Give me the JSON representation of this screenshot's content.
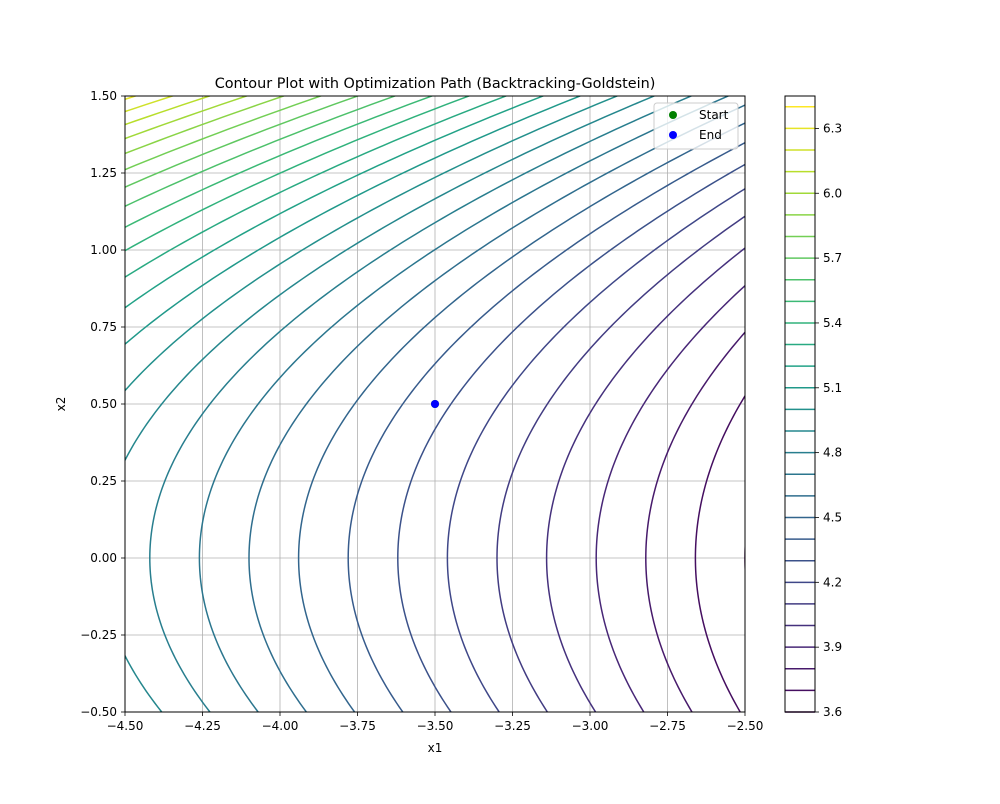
{
  "chart_data": {
    "type": "contour",
    "title": "Contour Plot with Optimization Path (Backtracking-Goldstein)",
    "xlabel": "x1",
    "ylabel": "x2",
    "xlim": [
      -4.5,
      -2.5
    ],
    "ylim": [
      -0.5,
      1.5
    ],
    "grid": true,
    "x_ticks": [
      -4.5,
      -4.25,
      -4.0,
      -3.75,
      -3.5,
      -3.25,
      -3.0,
      -2.75,
      -2.5
    ],
    "x_tick_labels": [
      "−4.50",
      "−4.25",
      "−4.00",
      "−3.75",
      "−3.50",
      "−3.25",
      "−3.00",
      "−2.75",
      "−2.50"
    ],
    "y_ticks": [
      -0.5,
      -0.25,
      0.0,
      0.25,
      0.5,
      0.75,
      1.0,
      1.25,
      1.5
    ],
    "y_tick_labels": [
      "−0.50",
      "−0.25",
      "0.00",
      "0.25",
      "0.50",
      "0.75",
      "1.00",
      "1.25",
      "1.50"
    ],
    "colormap": "viridis",
    "contour_levels": [
      3.6,
      3.7,
      3.8,
      3.9,
      4.0,
      4.1,
      4.2,
      4.3,
      4.4,
      4.5,
      4.6,
      4.7,
      4.8,
      4.9,
      5.0,
      5.1,
      5.2,
      5.3,
      5.4,
      5.5,
      5.6,
      5.7,
      5.8,
      5.9,
      6.0,
      6.1,
      6.2,
      6.3,
      6.4
    ],
    "colorbar": {
      "ticks": [
        3.6,
        3.9,
        4.2,
        4.5,
        4.8,
        5.1,
        5.4,
        5.7,
        6.0,
        6.3
      ],
      "tick_labels": [
        "3.6",
        "3.9",
        "4.2",
        "4.5",
        "4.8",
        "5.1",
        "5.4",
        "5.7",
        "6.0",
        "6.3"
      ],
      "range": [
        3.6,
        6.45
      ]
    },
    "points": [
      {
        "name": "Start",
        "x": -3.5,
        "y": 0.5,
        "color": "#008000"
      },
      {
        "name": "End",
        "x": -3.5,
        "y": 0.5,
        "color": "#0000ff"
      }
    ],
    "legend": {
      "placement": "top-right",
      "entries": [
        {
          "label": "Start",
          "color": "#008000"
        },
        {
          "label": "End",
          "color": "#0000ff"
        }
      ]
    }
  }
}
